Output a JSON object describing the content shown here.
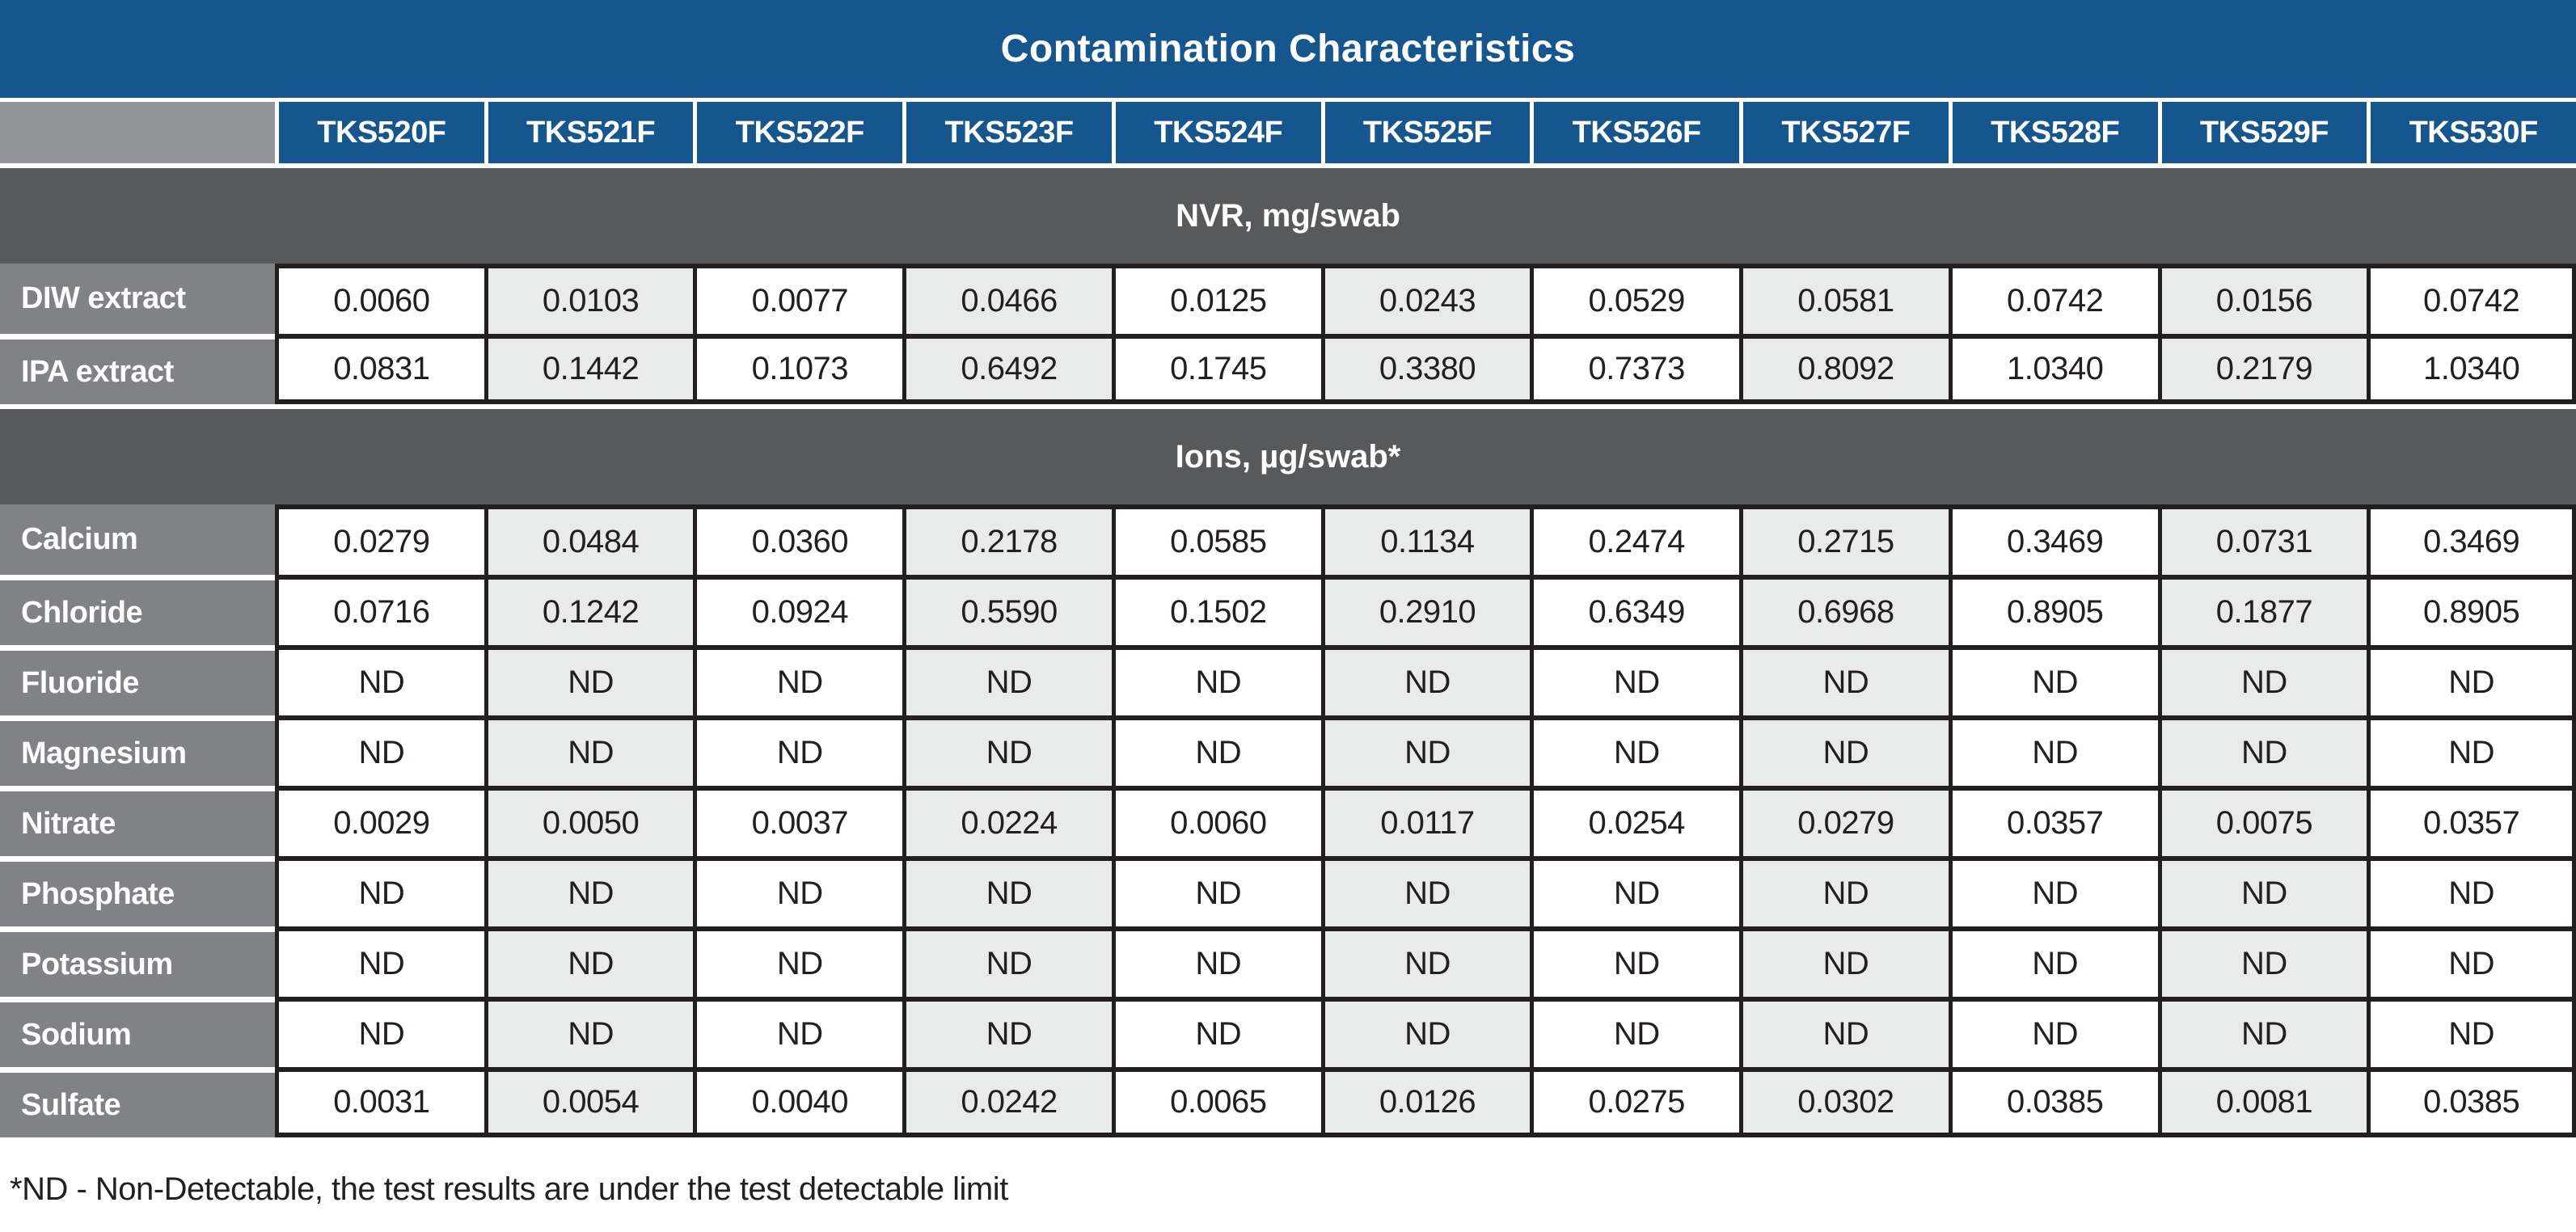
{
  "title": "Contamination Characteristics",
  "columns": [
    "TKS520F",
    "TKS521F",
    "TKS522F",
    "TKS523F",
    "TKS524F",
    "TKS525F",
    "TKS526F",
    "TKS527F",
    "TKS528F",
    "TKS529F",
    "TKS530F"
  ],
  "sections": [
    {
      "header": "NVR, mg/swab",
      "rows": [
        {
          "label": "DIW extract",
          "values": [
            "0.0060",
            "0.0103",
            "0.0077",
            "0.0466",
            "0.0125",
            "0.0243",
            "0.0529",
            "0.0581",
            "0.0742",
            "0.0156",
            "0.0742"
          ]
        },
        {
          "label": "IPA extract",
          "values": [
            "0.0831",
            "0.1442",
            "0.1073",
            "0.6492",
            "0.1745",
            "0.3380",
            "0.7373",
            "0.8092",
            "1.0340",
            "0.2179",
            "1.0340"
          ]
        }
      ]
    },
    {
      "header": "Ions, µg/swab*",
      "rows": [
        {
          "label": "Calcium",
          "values": [
            "0.0279",
            "0.0484",
            "0.0360",
            "0.2178",
            "0.0585",
            "0.1134",
            "0.2474",
            "0.2715",
            "0.3469",
            "0.0731",
            "0.3469"
          ]
        },
        {
          "label": "Chloride",
          "values": [
            "0.0716",
            "0.1242",
            "0.0924",
            "0.5590",
            "0.1502",
            "0.2910",
            "0.6349",
            "0.6968",
            "0.8905",
            "0.1877",
            "0.8905"
          ]
        },
        {
          "label": "Fluoride",
          "values": [
            "ND",
            "ND",
            "ND",
            "ND",
            "ND",
            "ND",
            "ND",
            "ND",
            "ND",
            "ND",
            "ND"
          ]
        },
        {
          "label": "Magnesium",
          "values": [
            "ND",
            "ND",
            "ND",
            "ND",
            "ND",
            "ND",
            "ND",
            "ND",
            "ND",
            "ND",
            "ND"
          ]
        },
        {
          "label": "Nitrate",
          "values": [
            "0.0029",
            "0.0050",
            "0.0037",
            "0.0224",
            "0.0060",
            "0.0117",
            "0.0254",
            "0.0279",
            "0.0357",
            "0.0075",
            "0.0357"
          ]
        },
        {
          "label": "Phosphate",
          "values": [
            "ND",
            "ND",
            "ND",
            "ND",
            "ND",
            "ND",
            "ND",
            "ND",
            "ND",
            "ND",
            "ND"
          ]
        },
        {
          "label": "Potassium",
          "values": [
            "ND",
            "ND",
            "ND",
            "ND",
            "ND",
            "ND",
            "ND",
            "ND",
            "ND",
            "ND",
            "ND"
          ]
        },
        {
          "label": "Sodium",
          "values": [
            "ND",
            "ND",
            "ND",
            "ND",
            "ND",
            "ND",
            "ND",
            "ND",
            "ND",
            "ND",
            "ND"
          ]
        },
        {
          "label": "Sulfate",
          "values": [
            "0.0031",
            "0.0054",
            "0.0040",
            "0.0242",
            "0.0065",
            "0.0126",
            "0.0275",
            "0.0302",
            "0.0385",
            "0.0081",
            "0.0385"
          ]
        }
      ]
    }
  ],
  "footnote": "*ND - Non-Detectable, the test results are under the test detectable limit",
  "colors": {
    "header_blue": "#15568f",
    "section_band_gray": "#58595b",
    "row_label_gray": "#808285",
    "corner_gray": "#939598",
    "alt_column_gray": "#e9eaea",
    "border_dark": "#231f20"
  }
}
